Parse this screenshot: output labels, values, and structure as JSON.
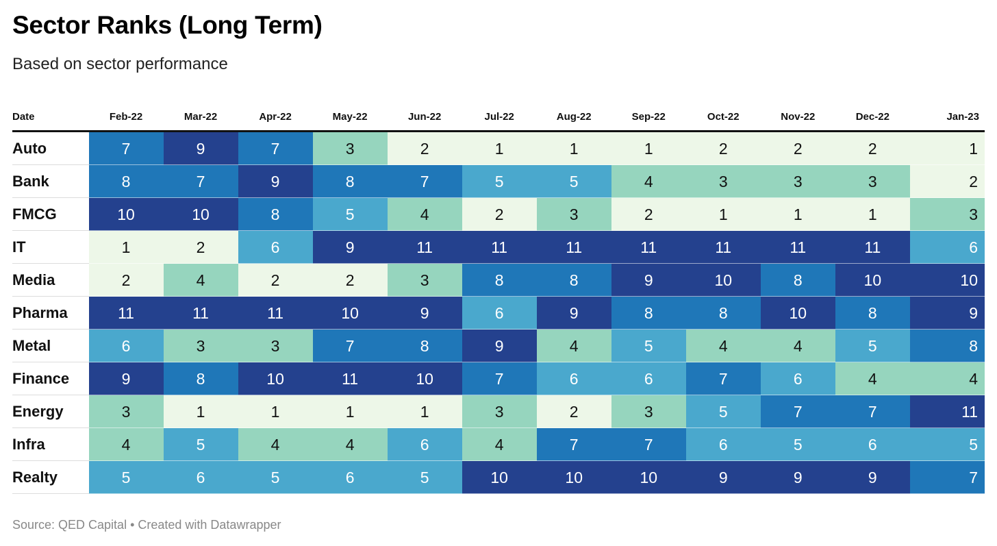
{
  "title": "Sector Ranks (Long Term)",
  "subtitle": "Based on sector performance",
  "source": "Source: QED Capital • Created with Datawrapper",
  "chart_data": {
    "type": "heatmap",
    "title": "Sector Ranks (Long Term)",
    "subtitle": "Based on sector performance",
    "row_header": "Date",
    "columns": [
      "Feb-22",
      "Mar-22",
      "Apr-22",
      "May-22",
      "Jun-22",
      "Jul-22",
      "Aug-22",
      "Sep-22",
      "Oct-22",
      "Nov-22",
      "Dec-22",
      "Jan-23"
    ],
    "rows": [
      {
        "name": "Auto",
        "values": [
          7,
          9,
          7,
          3,
          2,
          1,
          1,
          1,
          2,
          2,
          2,
          1
        ]
      },
      {
        "name": "Bank",
        "values": [
          8,
          7,
          9,
          8,
          7,
          5,
          5,
          4,
          3,
          3,
          3,
          2
        ]
      },
      {
        "name": "FMCG",
        "values": [
          10,
          10,
          8,
          5,
          4,
          2,
          3,
          2,
          1,
          1,
          1,
          3
        ]
      },
      {
        "name": "IT",
        "values": [
          1,
          2,
          6,
          9,
          11,
          11,
          11,
          11,
          11,
          11,
          11,
          6
        ]
      },
      {
        "name": "Media",
        "values": [
          2,
          4,
          2,
          2,
          3,
          8,
          8,
          9,
          10,
          8,
          10,
          10
        ]
      },
      {
        "name": "Pharma",
        "values": [
          11,
          11,
          11,
          10,
          9,
          6,
          9,
          8,
          8,
          10,
          8,
          9
        ]
      },
      {
        "name": "Metal",
        "values": [
          6,
          3,
          3,
          7,
          8,
          9,
          4,
          5,
          4,
          4,
          5,
          8
        ]
      },
      {
        "name": "Finance",
        "values": [
          9,
          8,
          10,
          11,
          10,
          7,
          6,
          6,
          7,
          6,
          4,
          4
        ]
      },
      {
        "name": "Energy",
        "values": [
          3,
          1,
          1,
          1,
          1,
          3,
          2,
          3,
          5,
          7,
          7,
          11
        ]
      },
      {
        "name": "Infra",
        "values": [
          4,
          5,
          4,
          4,
          6,
          4,
          7,
          7,
          6,
          5,
          6,
          5
        ]
      },
      {
        "name": "Realty",
        "values": [
          5,
          6,
          5,
          6,
          5,
          10,
          10,
          10,
          9,
          9,
          9,
          7
        ]
      }
    ],
    "color_scale": {
      "1": "#edf7e8",
      "2": "#edf7e8",
      "3": "#96d5be",
      "4": "#96d5be",
      "5": "#4aa8cd",
      "6": "#4aa8cd",
      "7": "#1f77b8",
      "8": "#1f77b8",
      "9": "#24418e",
      "10": "#24418e",
      "11": "#24418e"
    },
    "text_color_light": "#ffffff",
    "text_color_dark": "#111111"
  }
}
